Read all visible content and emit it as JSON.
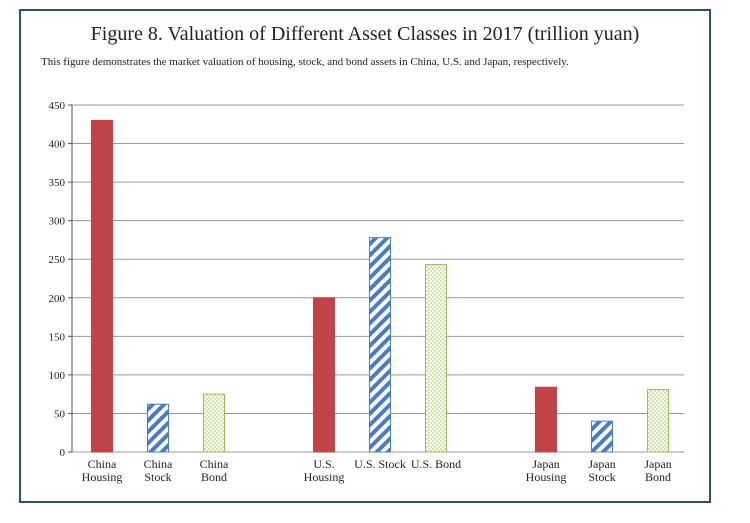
{
  "figure": {
    "title": "Figure 8. Valuation of Different Asset Classes in 2017 (trillion yuan)",
    "caption": "This figure demonstrates the market valuation of housing, stock, and bond assets in China, U.S. and Japan, respectively."
  },
  "colors": {
    "housing": "#c0444a",
    "stock_stripe": "#4a7cc0",
    "bond_dots": "#9bbb59",
    "bond_fill": "#fafdf2",
    "gridline": "#9a9a9a",
    "frame": "#2f4d7a"
  },
  "chart_data": {
    "type": "bar",
    "title": "Figure 8. Valuation of Different Asset Classes in 2017 (trillion yuan)",
    "xlabel": "",
    "ylabel": "",
    "ylim": [
      0,
      450
    ],
    "yticks": [
      0,
      50,
      100,
      150,
      200,
      250,
      300,
      350,
      400,
      450
    ],
    "grid": true,
    "categories": [
      {
        "lines": [
          "China",
          "Housing"
        ],
        "value": 430,
        "kind": "housing",
        "group": 0
      },
      {
        "lines": [
          "China",
          "Stock"
        ],
        "value": 62,
        "kind": "stock",
        "group": 0
      },
      {
        "lines": [
          "China",
          "Bond"
        ],
        "value": 75,
        "kind": "bond",
        "group": 0
      },
      {
        "lines": [
          "U.S.",
          "Housing"
        ],
        "value": 200,
        "kind": "housing",
        "group": 1
      },
      {
        "lines": [
          "U.S. Stock"
        ],
        "value": 278,
        "kind": "stock",
        "group": 1
      },
      {
        "lines": [
          "U.S. Bond"
        ],
        "value": 243,
        "kind": "bond",
        "group": 1
      },
      {
        "lines": [
          "Japan",
          "Housing"
        ],
        "value": 84,
        "kind": "housing",
        "group": 2
      },
      {
        "lines": [
          "Japan",
          "Stock"
        ],
        "value": 40,
        "kind": "stock",
        "group": 2
      },
      {
        "lines": [
          "Japan",
          "Bond"
        ],
        "value": 81,
        "kind": "bond",
        "group": 2
      }
    ]
  }
}
